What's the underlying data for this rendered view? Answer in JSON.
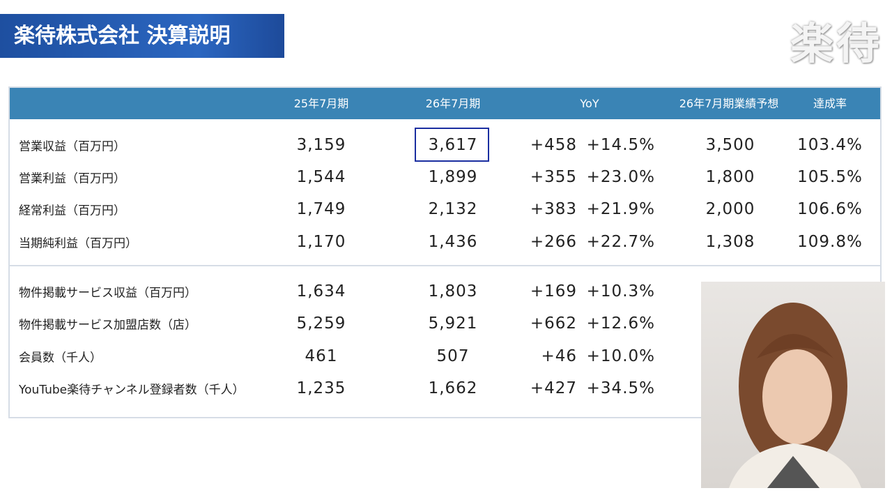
{
  "header": {
    "title": "楽待株式会社 決算説明",
    "logo": "楽待"
  },
  "table": {
    "columns": [
      "25年7月期",
      "26年7月期",
      "YoY",
      "26年7月期業績予想",
      "達成率"
    ],
    "rows": [
      [
        "営業収益（百万円）",
        "3,159",
        "3,617",
        "+458",
        "+14.5%",
        "3,500",
        "103.4%"
      ],
      [
        "営業利益（百万円）",
        "1,544",
        "1,899",
        "+355",
        "+23.0%",
        "1,800",
        "105.5%"
      ],
      [
        "経常利益（百万円）",
        "1,749",
        "2,132",
        "+383",
        "+21.9%",
        "2,000",
        "106.6%"
      ],
      [
        "当期純利益（百万円）",
        "1,170",
        "1,436",
        "+266",
        "+22.7%",
        "1,308",
        "109.8%"
      ]
    ],
    "kpi_rows": [
      [
        "物件掲載サービス収益（百万円）",
        "1,634",
        "1,803",
        "+169",
        "+10.3%"
      ],
      [
        "物件掲載サービス加盟店数（店）",
        "5,259",
        "5,921",
        "+662",
        "+12.6%"
      ],
      [
        "会員数（千人）",
        "461",
        "507",
        "+46",
        "+10.0%"
      ],
      [
        "YouTube楽待チャンネル登録者数（千人）",
        "1,235",
        "1,662",
        "+427",
        "+34.5%"
      ]
    ]
  }
}
